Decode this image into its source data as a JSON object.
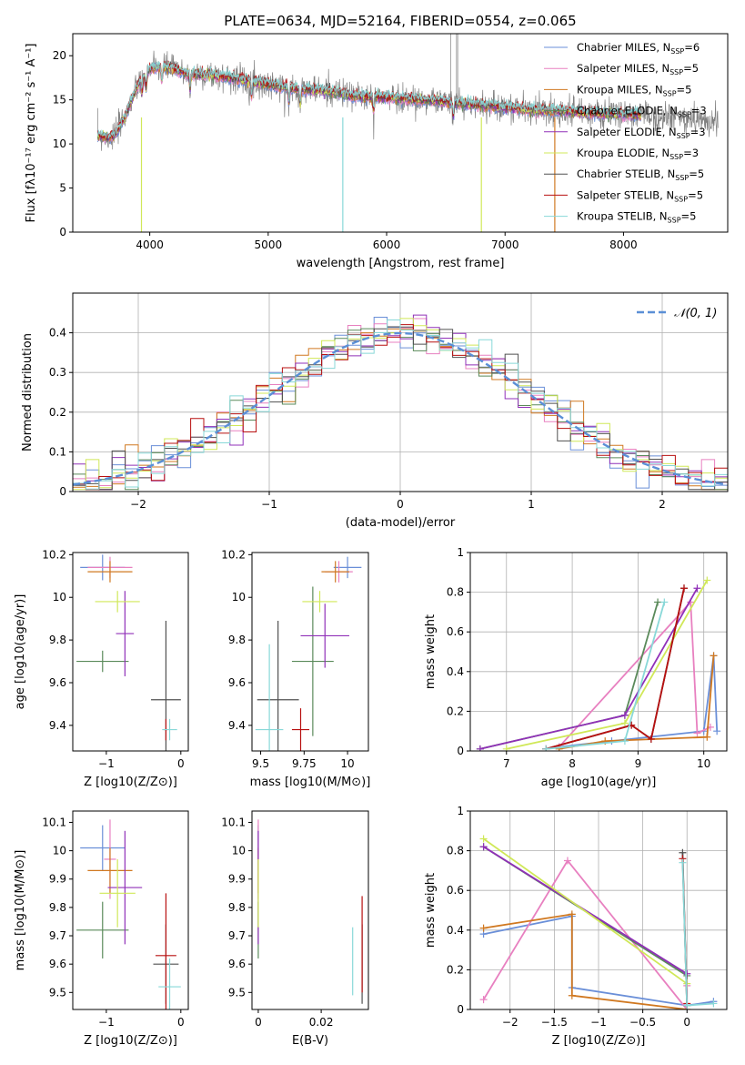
{
  "figure": {
    "title": "PLATE=0634, MJD=52164, FIBERID=0554, z=0.065"
  },
  "series_colors": [
    "#6a8fd8",
    "#e880c0",
    "#d07820",
    "#5a8a5a",
    "#9030b8",
    "#d0e858",
    "#505050",
    "#b81010",
    "#88d8d8"
  ],
  "chart_data": [
    {
      "type": "line",
      "panel": "spectrum",
      "xlabel": "wavelength [Angstrom, rest frame]",
      "ylabel": "Flux [fλ10⁻¹⁷ erg cm⁻² s⁻¹ A⁻¹]",
      "xlim": [
        3350,
        8880
      ],
      "ylim": [
        0,
        22.5
      ],
      "xticks": [
        4000,
        5000,
        6000,
        7000,
        8000
      ],
      "yticks": [
        0,
        5,
        10,
        15,
        20
      ],
      "legend_position": "top-right",
      "legend": [
        {
          "label": "Chabrier MILES, N",
          "sub": "SSP",
          "suffix": "=6"
        },
        {
          "label": "Salpeter MILES, N",
          "sub": "SSP",
          "suffix": "=5"
        },
        {
          "label": "Kroupa MILES, N",
          "sub": "SSP",
          "suffix": "=5"
        },
        {
          "label": "Chabrier ELODIE, N",
          "sub": "SSP",
          "suffix": "=3"
        },
        {
          "label": "Salpeter ELODIE, N",
          "sub": "SSP",
          "suffix": "=3"
        },
        {
          "label": "Kroupa ELODIE, N",
          "sub": "SSP",
          "suffix": "=3"
        },
        {
          "label": "Chabrier STELIB, N",
          "sub": "SSP",
          "suffix": "=5"
        },
        {
          "label": "Salpeter STELIB, N",
          "sub": "SSP",
          "suffix": "=5"
        },
        {
          "label": "Kroupa STELIB, N",
          "sub": "SSP",
          "suffix": "=5"
        }
      ],
      "data_envelope": {
        "x": [
          3560,
          3700,
          3800,
          3900,
          4000,
          4100,
          4200,
          4300,
          4500,
          4700,
          4900,
          5100,
          5300,
          5500,
          5700,
          5900,
          6100,
          6300,
          6500,
          6700,
          6900,
          7100,
          7300,
          7500,
          7700,
          7900,
          8100,
          8300,
          8500,
          8800
        ],
        "y": [
          12.0,
          13.5,
          15.0,
          17.0,
          18.5,
          18.8,
          18.5,
          18.0,
          17.8,
          17.5,
          17.0,
          16.5,
          16.2,
          16.0,
          15.5,
          15.3,
          15.2,
          15.0,
          14.8,
          14.5,
          14.3,
          14.0,
          13.8,
          13.7,
          13.5,
          13.4,
          13.3,
          13.1,
          12.9,
          12.6
        ]
      }
    },
    {
      "type": "step",
      "panel": "residual-histogram",
      "xlabel": "(data-model)/error",
      "ylabel": "Normed distribution",
      "xlim": [
        -2.5,
        2.5
      ],
      "ylim": [
        0,
        0.5
      ],
      "xticks": [
        -2,
        -1,
        0,
        1,
        2
      ],
      "yticks": [
        0.0,
        0.1,
        0.2,
        0.3,
        0.4
      ],
      "reference_curve": "𝒩(0, 1)",
      "bin_width": 0.1,
      "grid": true,
      "legend_position": "top-right"
    },
    {
      "type": "errorbar",
      "panel": "age-vs-Z",
      "xlabel": "Z [log10(Z/Z⊙)]",
      "ylabel": "age [log10(age/yr)]",
      "xlim": [
        -1.45,
        0.1
      ],
      "ylim": [
        9.28,
        10.21
      ],
      "xticks": [
        -1,
        0
      ],
      "yticks": [
        9.4,
        9.6,
        9.8,
        10.0,
        10.2
      ],
      "points": [
        {
          "x": -1.05,
          "xerr": 0.3,
          "y": 10.14,
          "yerr": 0.06
        },
        {
          "x": -0.95,
          "xerr": 0.3,
          "y": 10.14,
          "yerr": 0.05
        },
        {
          "x": -0.95,
          "xerr": 0.3,
          "y": 10.12,
          "yerr": 0.05
        },
        {
          "x": -1.05,
          "xerr": 0.35,
          "y": 9.7,
          "yerr": 0.05
        },
        {
          "x": -0.75,
          "xerr": 0.12,
          "y": 9.83,
          "yerr": 0.2
        },
        {
          "x": -0.85,
          "xerr": 0.3,
          "y": 9.98,
          "yerr": 0.05
        },
        {
          "x": -0.2,
          "xerr": 0.2,
          "y": 9.52,
          "yerr": 0.37
        },
        {
          "x": -0.2,
          "xerr": 0.02,
          "y": 9.38,
          "yerr": 0.05
        },
        {
          "x": -0.15,
          "xerr": 0.1,
          "y": 9.38,
          "yerr": 0.05
        }
      ]
    },
    {
      "type": "errorbar",
      "panel": "age-vs-mass",
      "xlabel": "mass [log10(M/M⊙)]",
      "ylabel": "",
      "xlim": [
        9.45,
        10.12
      ],
      "ylim": [
        9.28,
        10.21
      ],
      "xticks": [
        9.5,
        9.75,
        10.0
      ],
      "yticks": [
        9.4,
        9.6,
        9.8,
        10.0,
        10.2
      ],
      "points": [
        {
          "x": 10.0,
          "xerr": 0.08,
          "y": 10.14,
          "yerr": 0.05
        },
        {
          "x": 9.95,
          "xerr": 0.08,
          "y": 10.12,
          "yerr": 0.05
        },
        {
          "x": 9.93,
          "xerr": 0.08,
          "y": 10.12,
          "yerr": 0.05
        },
        {
          "x": 9.8,
          "xerr": 0.12,
          "y": 9.7,
          "yerr": 0.35
        },
        {
          "x": 9.87,
          "xerr": 0.14,
          "y": 9.82,
          "yerr": 0.15
        },
        {
          "x": 9.84,
          "xerr": 0.1,
          "y": 9.98,
          "yerr": 0.05
        },
        {
          "x": 9.6,
          "xerr": 0.12,
          "y": 9.52,
          "yerr": 0.37
        },
        {
          "x": 9.73,
          "xerr": 0.05,
          "y": 9.38,
          "yerr": 0.1
        },
        {
          "x": 9.55,
          "xerr": 0.08,
          "y": 9.38,
          "yerr": 0.4
        }
      ]
    },
    {
      "type": "line",
      "panel": "mass-weight-vs-age",
      "xlabel": "age [log10(age/yr)]",
      "ylabel": "mass weight",
      "xlim": [
        6.45,
        10.35
      ],
      "ylim": [
        0,
        1.0
      ],
      "xticks": [
        7,
        8,
        9,
        10
      ],
      "yticks": [
        0.0,
        0.2,
        0.4,
        0.6,
        0.8,
        1.0
      ],
      "grid": true,
      "series": [
        {
          "x": [
            7.8,
            8.6,
            10.0,
            10.15,
            10.2
          ],
          "y": [
            0.02,
            0.05,
            0.1,
            0.48,
            0.1
          ]
        },
        {
          "x": [
            7.8,
            9.8,
            9.9,
            10.1
          ],
          "y": [
            0.02,
            0.75,
            0.09,
            0.12
          ]
        },
        {
          "x": [
            7.8,
            8.5,
            10.05,
            10.15
          ],
          "y": [
            0.01,
            0.05,
            0.07,
            0.48
          ]
        },
        {
          "x": [
            6.6,
            8.8,
            9.3
          ],
          "y": [
            0.01,
            0.18,
            0.75
          ]
        },
        {
          "x": [
            6.6,
            8.8,
            9.9
          ],
          "y": [
            0.01,
            0.18,
            0.82
          ]
        },
        {
          "x": [
            7.0,
            8.8,
            10.05
          ],
          "y": [
            0.01,
            0.14,
            0.86
          ]
        },
        {
          "x": [
            7.6,
            8.9,
            9.2,
            9.7
          ],
          "y": [
            0.01,
            0.13,
            0.06,
            0.82
          ]
        },
        {
          "x": [
            7.6,
            8.9,
            9.2,
            9.7
          ],
          "y": [
            0.01,
            0.13,
            0.06,
            0.82
          ]
        },
        {
          "x": [
            7.6,
            8.8,
            9.4
          ],
          "y": [
            0.01,
            0.05,
            0.75
          ]
        }
      ]
    },
    {
      "type": "errorbar",
      "panel": "mass-vs-Z",
      "xlabel": "Z [log10(Z/Z⊙)]",
      "ylabel": "mass [log10(M/M⊙)]",
      "xlim": [
        -1.45,
        0.1
      ],
      "ylim": [
        9.44,
        10.14
      ],
      "xticks": [
        -1,
        0
      ],
      "yticks": [
        9.5,
        9.6,
        9.7,
        9.8,
        9.9,
        10.0,
        10.1
      ],
      "points": [
        {
          "x": -1.05,
          "xerr": 0.3,
          "y": 10.01,
          "yerr": 0.08
        },
        {
          "x": -0.95,
          "xerr": 0.08,
          "y": 9.97,
          "yerr": 0.14
        },
        {
          "x": -0.95,
          "xerr": 0.3,
          "y": 9.93,
          "yerr": 0.08
        },
        {
          "x": -1.05,
          "xerr": 0.35,
          "y": 9.72,
          "yerr": 0.1
        },
        {
          "x": -0.75,
          "xerr": 0.23,
          "y": 9.87,
          "yerr": 0.2
        },
        {
          "x": -0.85,
          "xerr": 0.24,
          "y": 9.85,
          "yerr": 0.12
        },
        {
          "x": -0.2,
          "xerr": 0.17,
          "y": 9.6,
          "yerr": 0.14
        },
        {
          "x": -0.2,
          "xerr": 0.14,
          "y": 9.63,
          "yerr": 0.22
        },
        {
          "x": -0.15,
          "xerr": 0.15,
          "y": 9.52,
          "yerr": 0.1
        }
      ]
    },
    {
      "type": "errorbar",
      "panel": "mass-vs-EBV",
      "xlabel": "E(B-V)",
      "ylabel": "",
      "xlim": [
        -0.002,
        0.035
      ],
      "ylim": [
        9.44,
        10.14
      ],
      "xticks": [
        0.0,
        0.02
      ],
      "yticks": [
        9.5,
        9.6,
        9.7,
        9.8,
        9.9,
        10.0,
        10.1
      ],
      "points": [
        {
          "x": 0.0,
          "xerr": 0.0,
          "y": 10.01,
          "yerr": 0.08
        },
        {
          "x": 0.0,
          "xerr": 0.0,
          "y": 9.97,
          "yerr": 0.14
        },
        {
          "x": 0.0,
          "xerr": 0.0,
          "y": 9.93,
          "yerr": 0.08
        },
        {
          "x": 0.0,
          "xerr": 0.0,
          "y": 9.72,
          "yerr": 0.1
        },
        {
          "x": 0.0,
          "xerr": 0.0,
          "y": 9.87,
          "yerr": 0.2
        },
        {
          "x": 0.0,
          "xerr": 0.0,
          "y": 9.85,
          "yerr": 0.12
        },
        {
          "x": 0.033,
          "xerr": 0.0,
          "y": 9.6,
          "yerr": 0.14
        },
        {
          "x": 0.033,
          "xerr": 0.0,
          "y": 9.67,
          "yerr": 0.17
        },
        {
          "x": 0.03,
          "xerr": 0.0,
          "y": 9.61,
          "yerr": 0.12
        }
      ]
    },
    {
      "type": "line",
      "panel": "mass-weight-vs-Z",
      "xlabel": "Z [log10(Z/Z⊙)]",
      "ylabel": "mass weight",
      "xlim": [
        -2.45,
        0.45
      ],
      "ylim": [
        0,
        1.0
      ],
      "xticks": [
        -2.0,
        -1.5,
        -1.0,
        -0.5,
        0.0
      ],
      "yticks": [
        0.0,
        0.2,
        0.4,
        0.6,
        0.8,
        1.0
      ],
      "grid": true,
      "series": [
        {
          "x": [
            -2.3,
            -1.3,
            -1.3,
            0.0,
            0.3
          ],
          "y": [
            0.38,
            0.47,
            0.11,
            0.02,
            0.04
          ]
        },
        {
          "x": [
            -2.3,
            -1.35,
            0.0,
            0.0
          ],
          "y": [
            0.05,
            0.75,
            0.0,
            0.12
          ]
        },
        {
          "x": [
            -2.3,
            -1.3,
            -1.3,
            0.0
          ],
          "y": [
            0.41,
            0.48,
            0.07,
            0.0
          ]
        },
        {
          "x": [
            -2.3,
            0.0
          ],
          "y": [
            0.82,
            0.17
          ]
        },
        {
          "x": [
            -2.3,
            0.0
          ],
          "y": [
            0.82,
            0.18
          ]
        },
        {
          "x": [
            -2.3,
            0.0
          ],
          "y": [
            0.86,
            0.13
          ]
        },
        {
          "x": [
            -0.05,
            0.0
          ],
          "y": [
            0.79,
            0.02
          ]
        },
        {
          "x": [
            -0.05,
            0.0
          ],
          "y": [
            0.76,
            0.03
          ]
        },
        {
          "x": [
            -0.05,
            0.0,
            0.3
          ],
          "y": [
            0.74,
            0.02,
            0.03
          ]
        }
      ]
    }
  ]
}
